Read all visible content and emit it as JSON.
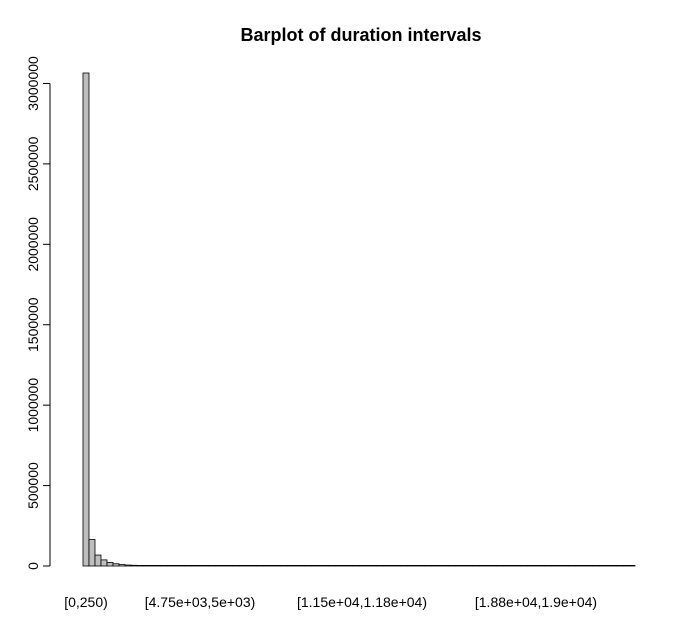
{
  "chart_data": {
    "type": "bar",
    "title": "Barplot of duration intervals",
    "xlabel": "",
    "ylabel": "",
    "ylim": [
      0,
      3100000
    ],
    "y_ticks": [
      0,
      500000,
      1000000,
      1500000,
      2000000,
      2500000,
      3000000
    ],
    "y_tick_labels": [
      "0",
      "500000",
      "1000000",
      "1500000",
      "2000000",
      "2500000",
      "3000000"
    ],
    "x_tick_labels": [
      "[0,250)",
      "[4.75e+03,5e+03)",
      "[1.15e+04,1.18e+04)",
      "[1.88e+04,1.9e+04)"
    ],
    "x_tick_label_bar_index": [
      0,
      19,
      46,
      75
    ],
    "bar_width_interval": 250,
    "bar_count": 92,
    "values_head": [
      3065000,
      165000,
      68000,
      38000,
      22000,
      14000,
      9000,
      6000,
      4500,
      3500,
      2800,
      2200,
      1800,
      1500,
      1200,
      1000,
      850,
      700,
      600,
      500
    ],
    "values_tail": 300,
    "bar_fill": "#bebebe",
    "bar_stroke": "#000000",
    "grid": false,
    "legend": "none"
  }
}
